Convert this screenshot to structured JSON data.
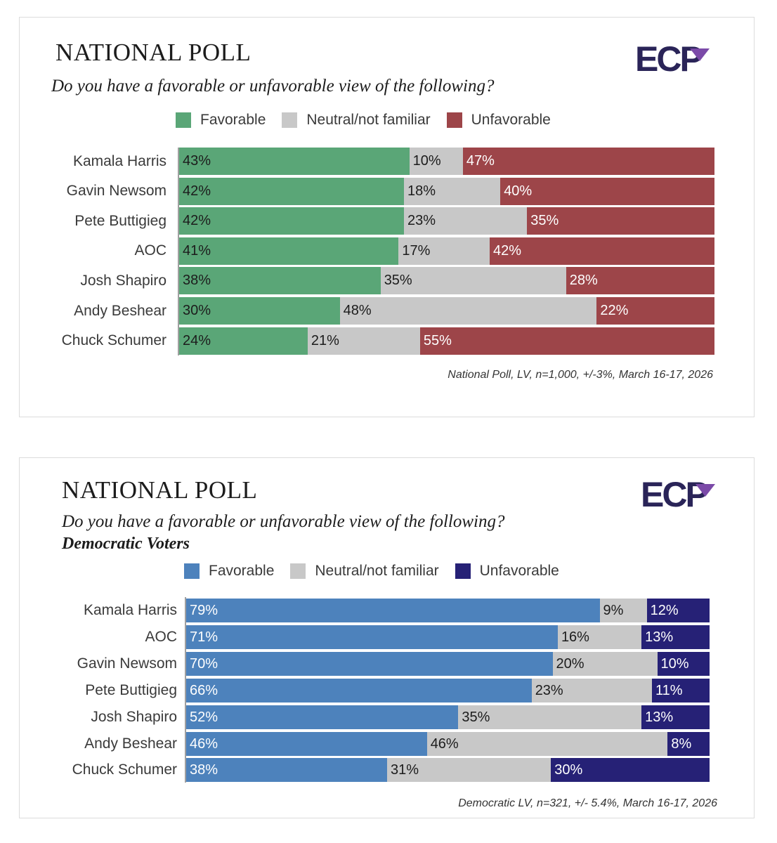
{
  "logo_text": "ECP",
  "colors": {
    "logo_dark": "#2a2458",
    "logo_accent": "#7b4aa8",
    "neutral": "#c8c8c8"
  },
  "chart_data": [
    {
      "type": "bar",
      "orientation": "horizontal",
      "stacked": true,
      "title": "NATIONAL POLL",
      "subtitle": "Do you have a favorable or unfavorable view of the following?",
      "subgroup": "",
      "categories": [
        "Kamala Harris",
        "Gavin Newsom",
        "Pete Buttigieg",
        "AOC",
        "Josh Shapiro",
        "Andy Beshear",
        "Chuck Schumer"
      ],
      "series": [
        {
          "name": "Favorable",
          "color": "#5aa677",
          "values": [
            43,
            42,
            42,
            41,
            38,
            30,
            24
          ]
        },
        {
          "name": "Neutral/not familiar",
          "color": "#c8c8c8",
          "values": [
            10,
            18,
            23,
            17,
            35,
            48,
            21
          ]
        },
        {
          "name": "Unfavorable",
          "color": "#9d4549",
          "values": [
            47,
            40,
            35,
            42,
            28,
            22,
            55
          ]
        }
      ],
      "value_suffix": "%",
      "legend_position": "top",
      "grid": false,
      "footnote": "National Poll, LV, n=1,000, +/-3%, March 16-17, 2026"
    },
    {
      "type": "bar",
      "orientation": "horizontal",
      "stacked": true,
      "title": "NATIONAL POLL",
      "subtitle": "Do you have a favorable or unfavorable view of the following?",
      "subgroup": "Democratic Voters",
      "categories": [
        "Kamala Harris",
        "AOC",
        "Gavin Newsom",
        "Pete Buttigieg",
        "Josh Shapiro",
        "Andy Beshear",
        "Chuck Schumer"
      ],
      "series": [
        {
          "name": "Favorable",
          "color": "#4d82bc",
          "values": [
            79,
            71,
            70,
            66,
            52,
            46,
            38
          ]
        },
        {
          "name": "Neutral/not familiar",
          "color": "#c8c8c8",
          "values": [
            9,
            16,
            20,
            23,
            35,
            46,
            31
          ]
        },
        {
          "name": "Unfavorable",
          "color": "#262176",
          "values": [
            12,
            13,
            10,
            11,
            13,
            8,
            30
          ]
        }
      ],
      "value_suffix": "%",
      "legend_position": "top",
      "grid": false,
      "footnote": "Democratic LV, n=321, +/- 5.4%, March 16-17, 2026"
    }
  ]
}
